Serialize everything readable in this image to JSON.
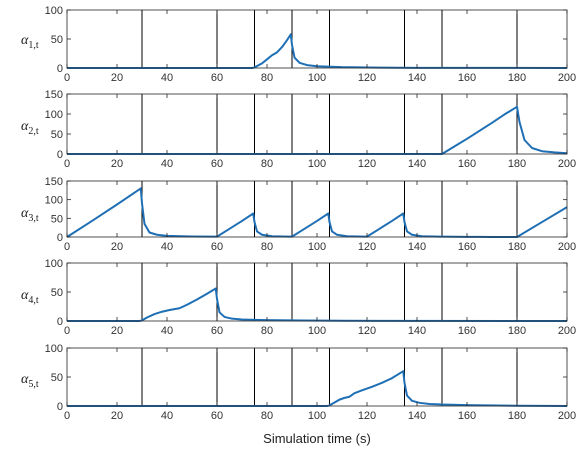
{
  "figure": {
    "xlabel": "Simulation time (s)"
  },
  "colors": {
    "line": "#1f6fb5",
    "axes": "#262626",
    "vline": "#000000",
    "background": "#ffffff"
  },
  "chart_data": [
    {
      "type": "line",
      "ylabel_main": "α",
      "ylabel_sub": "1,t",
      "xlim": [
        0,
        200
      ],
      "ylim": [
        0,
        100
      ],
      "xticks": [
        0,
        20,
        40,
        60,
        80,
        100,
        120,
        140,
        160,
        180,
        200
      ],
      "yticks": [
        0,
        50,
        100
      ],
      "vlines": [
        30,
        60,
        75,
        90,
        105,
        135,
        150,
        180
      ],
      "grid": false,
      "series": [
        {
          "x": [
            0,
            74,
            75,
            78,
            80,
            82,
            84,
            86,
            88,
            89.5,
            90,
            91,
            93,
            96,
            100,
            110,
            125,
            140,
            200
          ],
          "y": [
            0,
            0,
            1,
            8,
            15,
            22,
            27,
            36,
            48,
            58,
            40,
            18,
            9,
            5,
            3,
            1.5,
            0.7,
            0.3,
            0
          ]
        }
      ]
    },
    {
      "type": "line",
      "ylabel_main": "α",
      "ylabel_sub": "2,t",
      "xlim": [
        0,
        200
      ],
      "ylim": [
        0,
        150
      ],
      "xticks": [
        0,
        20,
        40,
        60,
        80,
        100,
        120,
        140,
        160,
        180,
        200
      ],
      "yticks": [
        0,
        50,
        100,
        150
      ],
      "vlines": [
        30,
        60,
        75,
        90,
        105,
        135,
        150,
        180
      ],
      "grid": false,
      "series": [
        {
          "x": [
            0,
            150,
            155,
            160,
            165,
            170,
            175,
            180,
            181,
            183,
            186,
            190,
            195,
            200
          ],
          "y": [
            0,
            0,
            19,
            38,
            58,
            78,
            99,
            118,
            80,
            35,
            15,
            7,
            4,
            2
          ]
        }
      ]
    },
    {
      "type": "line",
      "ylabel_main": "α",
      "ylabel_sub": "3,t",
      "xlim": [
        0,
        200
      ],
      "ylim": [
        0,
        150
      ],
      "xticks": [
        0,
        20,
        40,
        60,
        80,
        100,
        120,
        140,
        160,
        180,
        200
      ],
      "yticks": [
        0,
        50,
        100,
        150
      ],
      "vlines": [
        30,
        60,
        75,
        90,
        105,
        135,
        150,
        180
      ],
      "grid": false,
      "series": [
        {
          "x": [
            0,
            10,
            20,
            29.5,
            30,
            31,
            33,
            36,
            40,
            50,
            59,
            60,
            65,
            70,
            74.5,
            75,
            76,
            78,
            82,
            89,
            90,
            95,
            100,
            104.5,
            105,
            106,
            108,
            112,
            119,
            120,
            125,
            130,
            134.5,
            135,
            136,
            138,
            142,
            149,
            150,
            155,
            160,
            165,
            170,
            179,
            180,
            190,
            200
          ],
          "y": [
            0,
            43,
            87,
            130,
            90,
            35,
            12,
            6,
            3,
            1.5,
            1,
            1,
            22,
            43,
            63,
            40,
            15,
            6,
            2,
            1,
            1,
            22,
            43,
            63,
            40,
            15,
            6,
            2,
            1,
            1,
            22,
            43,
            63,
            40,
            15,
            6,
            2,
            1,
            1,
            0.5,
            0.3,
            0.2,
            0.1,
            0,
            0,
            40,
            80
          ]
        }
      ]
    },
    {
      "type": "line",
      "ylabel_main": "α",
      "ylabel_sub": "4,t",
      "xlim": [
        0,
        200
      ],
      "ylim": [
        0,
        100
      ],
      "xticks": [
        0,
        20,
        40,
        60,
        80,
        100,
        120,
        140,
        160,
        180,
        200
      ],
      "yticks": [
        0,
        50,
        100
      ],
      "vlines": [
        30,
        60,
        75,
        90,
        105,
        135,
        150,
        180
      ],
      "grid": false,
      "series": [
        {
          "x": [
            0,
            29,
            30,
            32,
            35,
            38,
            41,
            45,
            48,
            52,
            56,
            59.5,
            60,
            61,
            63,
            66,
            70,
            80,
            95,
            110,
            130,
            200
          ],
          "y": [
            0,
            0,
            1,
            6,
            12,
            16,
            19,
            22,
            28,
            37,
            47,
            56,
            38,
            15,
            7,
            4,
            2.5,
            1.5,
            0.8,
            0.4,
            0.2,
            0
          ]
        }
      ]
    },
    {
      "type": "line",
      "ylabel_main": "α",
      "ylabel_sub": "5,t",
      "xlim": [
        0,
        200
      ],
      "ylim": [
        0,
        100
      ],
      "xticks": [
        0,
        20,
        40,
        60,
        80,
        100,
        120,
        140,
        160,
        180,
        200
      ],
      "yticks": [
        0,
        50,
        100
      ],
      "vlines": [
        30,
        60,
        75,
        90,
        105,
        135,
        150,
        180
      ],
      "grid": false,
      "series": [
        {
          "x": [
            0,
            104,
            105,
            107,
            109,
            111,
            113,
            115,
            118,
            122,
            126,
            130,
            134.5,
            135,
            136,
            138,
            141,
            145,
            150,
            160,
            180,
            200
          ],
          "y": [
            0,
            0,
            1,
            6,
            11,
            14,
            16,
            22,
            27,
            33,
            40,
            48,
            60,
            40,
            18,
            9,
            5.5,
            3.5,
            2.5,
            1.5,
            0.5,
            0
          ]
        }
      ]
    }
  ]
}
